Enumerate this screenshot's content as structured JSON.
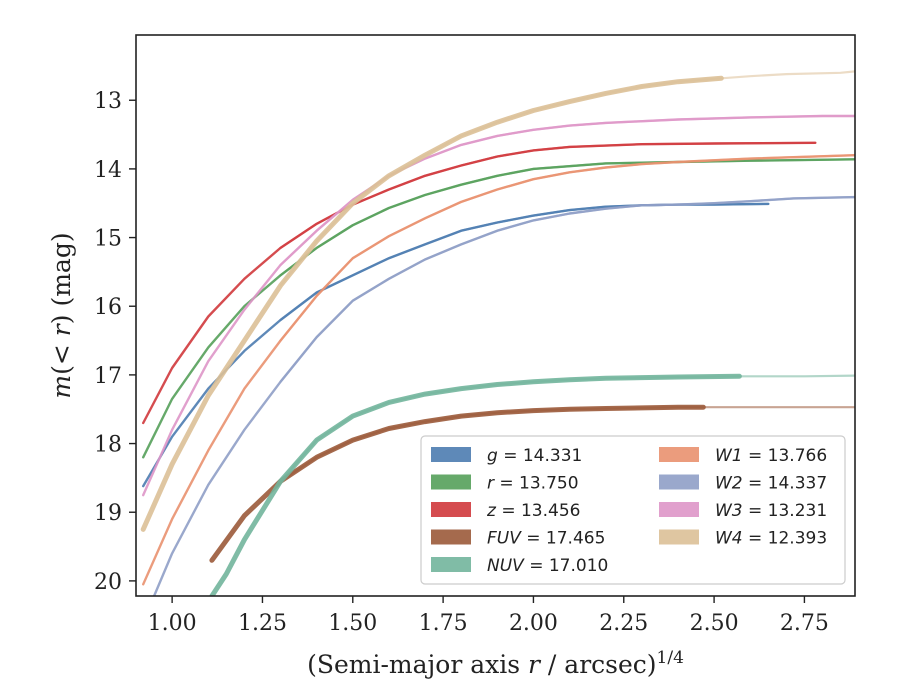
{
  "chart_data": {
    "type": "line",
    "xlabel": "(Semi-major axis r / arcsec)^{1/4}",
    "ylabel": "m(<r) (mag)",
    "xlim": [
      0.9,
      2.89
    ],
    "ylim": [
      20.22,
      12.05
    ],
    "y_inverted": true,
    "grid": false,
    "legend_placement": "lower-right",
    "xticks": [
      "1.00",
      "1.25",
      "1.50",
      "1.75",
      "2.00",
      "2.25",
      "2.50",
      "2.75"
    ],
    "yticks": [
      "13",
      "14",
      "15",
      "16",
      "17",
      "18",
      "19",
      "20"
    ],
    "series": [
      {
        "name": "g = 14.331",
        "label_var": "g",
        "label_val": "= 14.331",
        "color": "#4c7cb0",
        "fitted_from_x": 1.3,
        "x": [
          0.92,
          1.0,
          1.1,
          1.2,
          1.3,
          1.4,
          1.5,
          1.6,
          1.7,
          1.8,
          1.9,
          2.0,
          2.1,
          2.2,
          2.3,
          2.4,
          2.5,
          2.65
        ],
        "y": [
          18.62,
          17.9,
          17.2,
          16.65,
          16.2,
          15.8,
          15.55,
          15.3,
          15.1,
          14.9,
          14.78,
          14.68,
          14.6,
          14.55,
          14.53,
          14.52,
          14.52,
          14.51
        ]
      },
      {
        "name": "r = 13.750",
        "label_var": "r",
        "label_val": "= 13.750",
        "color": "#55a05a",
        "fitted_from_x": 1.3,
        "x": [
          0.92,
          1.0,
          1.1,
          1.2,
          1.3,
          1.4,
          1.5,
          1.6,
          1.7,
          1.8,
          1.9,
          2.0,
          2.2,
          2.4,
          2.6,
          2.89
        ],
        "y": [
          18.2,
          17.35,
          16.6,
          16.0,
          15.55,
          15.15,
          14.82,
          14.57,
          14.38,
          14.23,
          14.1,
          14.0,
          13.92,
          13.9,
          13.88,
          13.86
        ]
      },
      {
        "name": "z = 13.456",
        "label_var": "z",
        "label_val": "= 13.456",
        "color": "#d0393c",
        "fitted_from_x": 1.3,
        "x": [
          0.92,
          1.0,
          1.1,
          1.2,
          1.3,
          1.4,
          1.5,
          1.6,
          1.7,
          1.8,
          1.9,
          2.0,
          2.1,
          2.3,
          2.5,
          2.78
        ],
        "y": [
          17.7,
          16.9,
          16.15,
          15.6,
          15.15,
          14.8,
          14.52,
          14.3,
          14.1,
          13.95,
          13.82,
          13.73,
          13.68,
          13.64,
          13.63,
          13.62
        ]
      },
      {
        "name": "FUV = 17.465",
        "label_var": "FUV",
        "label_val": "= 17.465",
        "color": "#9b5a3a",
        "fitted_from_x": 2.47,
        "x": [
          1.11,
          1.2,
          1.3,
          1.4,
          1.5,
          1.6,
          1.7,
          1.8,
          1.9,
          2.0,
          2.1,
          2.2,
          2.3,
          2.4,
          2.47,
          2.6,
          2.75,
          2.89
        ],
        "y": [
          19.7,
          19.05,
          18.55,
          18.2,
          17.95,
          17.78,
          17.68,
          17.6,
          17.55,
          17.52,
          17.5,
          17.49,
          17.48,
          17.47,
          17.47,
          17.47,
          17.47,
          17.47
        ]
      },
      {
        "name": "NUV = 17.010",
        "label_var": "NUV",
        "label_val": "= 17.010",
        "color": "#72b59c",
        "fitted_from_x": 2.57,
        "x": [
          1.11,
          1.15,
          1.2,
          1.3,
          1.4,
          1.5,
          1.6,
          1.7,
          1.8,
          1.9,
          2.0,
          2.1,
          2.2,
          2.3,
          2.4,
          2.57,
          2.75,
          2.89
        ],
        "y": [
          20.22,
          19.9,
          19.4,
          18.55,
          17.95,
          17.6,
          17.4,
          17.28,
          17.2,
          17.14,
          17.1,
          17.07,
          17.05,
          17.04,
          17.03,
          17.02,
          17.02,
          17.01
        ]
      },
      {
        "name": "W1 = 13.766",
        "label_var": "W1",
        "label_val": "= 13.766",
        "color": "#e9916f",
        "fitted_from_x": 1.3,
        "x": [
          0.92,
          1.0,
          1.1,
          1.2,
          1.3,
          1.4,
          1.5,
          1.6,
          1.7,
          1.8,
          1.9,
          2.0,
          2.1,
          2.2,
          2.3,
          2.4,
          2.6,
          2.89
        ],
        "y": [
          20.05,
          19.1,
          18.1,
          17.2,
          16.5,
          15.85,
          15.3,
          14.98,
          14.72,
          14.48,
          14.3,
          14.15,
          14.05,
          13.98,
          13.93,
          13.9,
          13.85,
          13.8
        ]
      },
      {
        "name": "W2 = 14.337",
        "label_var": "W2",
        "label_val": "= 14.337",
        "color": "#8f9fc6",
        "fitted_from_x": 1.3,
        "x": [
          0.95,
          1.0,
          1.1,
          1.2,
          1.3,
          1.4,
          1.5,
          1.6,
          1.7,
          1.8,
          1.9,
          2.0,
          2.1,
          2.2,
          2.3,
          2.4,
          2.5,
          2.6,
          2.72,
          2.89
        ],
        "y": [
          20.22,
          19.6,
          18.6,
          17.8,
          17.1,
          16.45,
          15.92,
          15.6,
          15.32,
          15.1,
          14.9,
          14.75,
          14.65,
          14.58,
          14.53,
          14.52,
          14.5,
          14.47,
          14.43,
          14.41
        ]
      },
      {
        "name": "W3 = 13.231",
        "label_var": "W3",
        "label_val": "= 13.231",
        "color": "#de96c8",
        "fitted_from_x": 1.3,
        "x": [
          0.92,
          1.0,
          1.1,
          1.2,
          1.3,
          1.4,
          1.5,
          1.6,
          1.7,
          1.8,
          1.9,
          2.0,
          2.1,
          2.2,
          2.4,
          2.6,
          2.8,
          2.89
        ],
        "y": [
          18.75,
          17.8,
          16.8,
          16.05,
          15.4,
          14.9,
          14.45,
          14.1,
          13.85,
          13.65,
          13.52,
          13.43,
          13.37,
          13.33,
          13.28,
          13.25,
          13.23,
          13.23
        ]
      },
      {
        "name": "W4 = 12.393",
        "label_var": "W4",
        "label_val": "= 12.393",
        "color": "#dcc097",
        "fitted_from_x": 2.52,
        "x": [
          0.92,
          1.0,
          1.1,
          1.2,
          1.3,
          1.4,
          1.5,
          1.6,
          1.7,
          1.8,
          1.9,
          2.0,
          2.1,
          2.2,
          2.3,
          2.4,
          2.52,
          2.6,
          2.7,
          2.85,
          2.89
        ],
        "y": [
          19.25,
          18.3,
          17.3,
          16.5,
          15.7,
          15.05,
          14.5,
          14.1,
          13.8,
          13.52,
          13.32,
          13.15,
          13.02,
          12.9,
          12.8,
          12.73,
          12.68,
          12.65,
          12.62,
          12.6,
          12.58
        ]
      }
    ]
  }
}
